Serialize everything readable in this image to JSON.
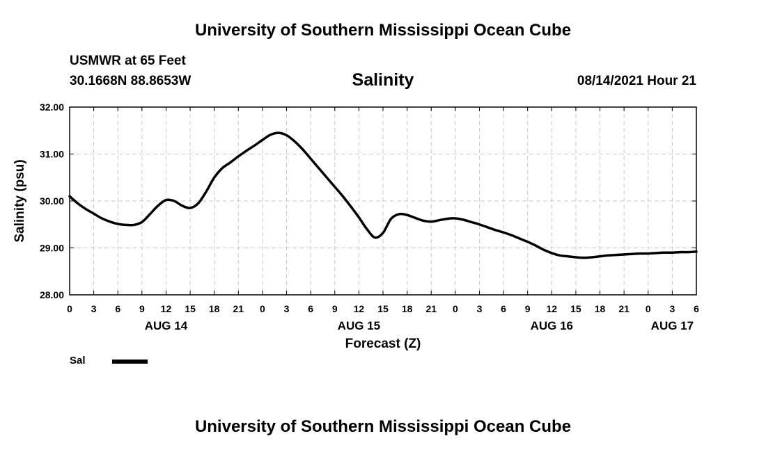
{
  "header": {
    "title": "University of Southern Mississippi Ocean Cube",
    "station": "USMWR at 65 Feet",
    "coordinates": "30.1668N  88.8653W",
    "product": "Salinity",
    "datetime": "08/14/2021 Hour 21"
  },
  "footer": {
    "title": "University of Southern Mississippi Ocean Cube"
  },
  "legend": {
    "label": "Sal",
    "color": "#000000"
  },
  "chart_data": {
    "type": "line",
    "title": "Salinity",
    "xlabel": "Forecast (Z)",
    "ylabel": "Salinity (psu)",
    "ylim": [
      28.0,
      32.0
    ],
    "yticks": [
      "28.00",
      "29.00",
      "30.00",
      "31.00",
      "32.00"
    ],
    "xlim": [
      0,
      78
    ],
    "xtick_hours": [
      0,
      3,
      6,
      9,
      12,
      15,
      18,
      21,
      24,
      27,
      30,
      33,
      36,
      39,
      42,
      45,
      48,
      51,
      54,
      57,
      60,
      63,
      66,
      69,
      72,
      75,
      78
    ],
    "xtick_labels": [
      "0",
      "3",
      "6",
      "9",
      "12",
      "15",
      "18",
      "21",
      "0",
      "3",
      "6",
      "9",
      "12",
      "15",
      "18",
      "21",
      "0",
      "3",
      "6",
      "9",
      "12",
      "15",
      "18",
      "21",
      "0",
      "3",
      "6"
    ],
    "day_labels": [
      {
        "hour": 12,
        "label": "AUG 14"
      },
      {
        "hour": 36,
        "label": "AUG 15"
      },
      {
        "hour": 60,
        "label": "AUG 16"
      },
      {
        "hour": 75,
        "label": "AUG 17"
      }
    ],
    "grid": true,
    "series": [
      {
        "name": "Sal",
        "x": [
          0,
          1,
          2,
          3,
          4,
          5,
          6,
          7,
          8,
          9,
          10,
          11,
          12,
          13,
          14,
          15,
          16,
          17,
          18,
          19,
          20,
          21,
          22,
          23,
          24,
          25,
          26,
          27,
          28,
          29,
          30,
          31,
          32,
          33,
          34,
          35,
          36,
          37,
          38,
          39,
          40,
          41,
          42,
          43,
          44,
          45,
          46,
          47,
          48,
          49,
          50,
          51,
          52,
          53,
          54,
          55,
          56,
          57,
          58,
          59,
          60,
          61,
          62,
          63,
          64,
          65,
          66,
          67,
          68,
          69,
          70,
          71,
          72,
          73,
          74,
          75,
          76,
          77,
          78
        ],
        "values": [
          30.1,
          29.95,
          29.83,
          29.73,
          29.63,
          29.56,
          29.51,
          29.49,
          29.49,
          29.55,
          29.72,
          29.9,
          30.02,
          30.0,
          29.9,
          29.85,
          29.95,
          30.2,
          30.5,
          30.7,
          30.82,
          30.95,
          31.07,
          31.18,
          31.3,
          31.41,
          31.45,
          31.4,
          31.27,
          31.1,
          30.9,
          30.7,
          30.5,
          30.3,
          30.1,
          29.88,
          29.65,
          29.4,
          29.22,
          29.32,
          29.62,
          29.72,
          29.7,
          29.64,
          29.58,
          29.56,
          29.59,
          29.62,
          29.63,
          29.6,
          29.55,
          29.5,
          29.44,
          29.38,
          29.33,
          29.27,
          29.2,
          29.13,
          29.05,
          28.96,
          28.89,
          28.84,
          28.82,
          28.8,
          28.79,
          28.8,
          28.82,
          28.84,
          28.85,
          28.86,
          28.87,
          28.88,
          28.88,
          28.89,
          28.9,
          28.9,
          28.91,
          28.91,
          28.92
        ]
      }
    ]
  }
}
